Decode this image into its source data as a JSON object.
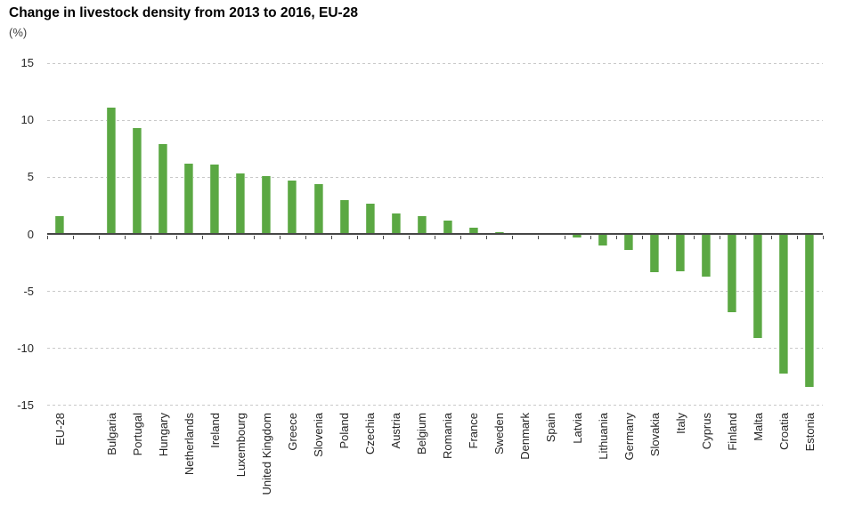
{
  "chart_data": {
    "type": "bar",
    "title": "Change in livestock density from 2013 to 2016, EU-28",
    "unit_label": "(%)",
    "xlabel": "",
    "ylabel": "",
    "ylim": [
      -15,
      15
    ],
    "yticks": [
      15,
      10,
      5,
      0,
      -5,
      -10,
      -15
    ],
    "grid": "horizontal-dashed",
    "legend": "none",
    "bar_color": "#5BA843",
    "categories": [
      "EU-28",
      "Bulgaria",
      "Portugal",
      "Hungary",
      "Netherlands",
      "Ireland",
      "Luxembourg",
      "United Kingdom",
      "Greece",
      "Slovenia",
      "Poland",
      "Czechia",
      "Austria",
      "Belgium",
      "Romania",
      "France",
      "Sweden",
      "Denmark",
      "Spain",
      "Latvia",
      "Lithuania",
      "Germany",
      "Slovakia",
      "Italy",
      "Cyprus",
      "Finland",
      "Malta",
      "Croatia",
      "Estonia"
    ],
    "values": [
      1.6,
      11.1,
      9.3,
      7.9,
      6.2,
      6.1,
      5.3,
      5.1,
      4.7,
      4.4,
      3.0,
      2.7,
      1.8,
      1.6,
      1.2,
      0.6,
      0.2,
      0.1,
      0.0,
      -0.3,
      -1.0,
      -1.4,
      -3.3,
      -3.2,
      -3.7,
      -6.8,
      -9.1,
      -12.2,
      -13.4
    ],
    "layout_hints": {
      "gap_after_first_category": true,
      "x_labels_rotated_90_ccw": true
    }
  }
}
